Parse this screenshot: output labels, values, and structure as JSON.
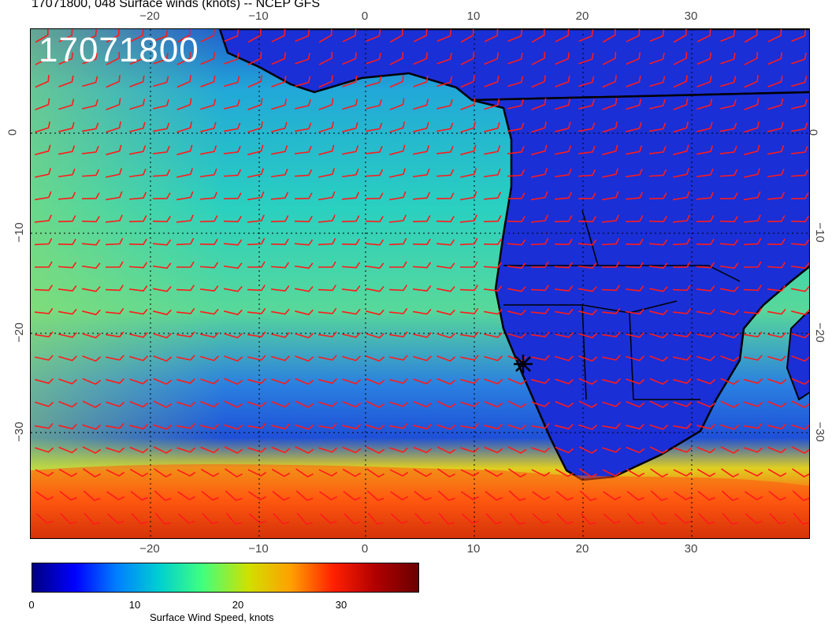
{
  "title": "17071800, 048 Surface winds (knots) -- NCEP GFS",
  "stamp": "17071800",
  "axes": {
    "lon_ticks": [
      "−20",
      "−10",
      "0",
      "10",
      "20",
      "30"
    ],
    "lat_ticks": [
      "0",
      "−10",
      "−20",
      "−30"
    ]
  },
  "colorbar": {
    "label": "Surface Wind Speed, knots",
    "ticks": [
      "0",
      "10",
      "20",
      "30"
    ],
    "colors": [
      "#00007f",
      "#0000ff",
      "#0080ff",
      "#00d0d0",
      "#40ff80",
      "#d0e000",
      "#ffa000",
      "#ff2000",
      "#b00000",
      "#6a0000"
    ]
  },
  "map": {
    "barb_color": "#ff1a1a",
    "ocean_color": "#22c8c8",
    "land_color": "#1a2fd6",
    "marker": "star-icon"
  }
}
